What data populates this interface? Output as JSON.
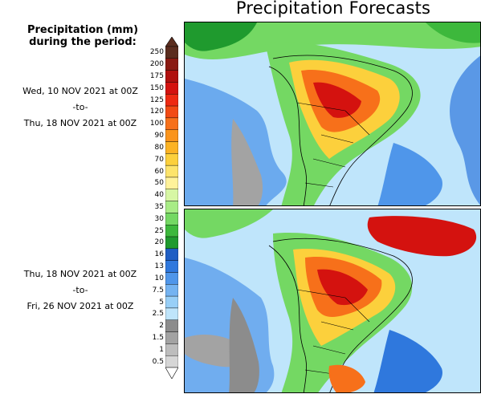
{
  "title": "Precipitation Forecasts",
  "legend": {
    "title_line1": "Precipitation (mm)",
    "title_line2": "during the period:",
    "levels": [
      "250",
      "200",
      "175",
      "150",
      "125",
      "120",
      "100",
      "90",
      "80",
      "70",
      "60",
      "50",
      "40",
      "35",
      "30",
      "25",
      "20",
      "16",
      "13",
      "10",
      "7.5",
      "5",
      "2.5",
      "2",
      "1.5",
      "1",
      "0.5"
    ],
    "colors": [
      "#5b2d1f",
      "#8a1a12",
      "#b0100e",
      "#d4120f",
      "#ee2a12",
      "#f24a14",
      "#f7701a",
      "#fa941c",
      "#fcb324",
      "#fcd03c",
      "#fde46b",
      "#fff29a",
      "#d7f7a4",
      "#a8ec86",
      "#74d863",
      "#3db83c",
      "#1f9a2e",
      "#1f5ec4",
      "#2f78dd",
      "#4f96ea",
      "#74b3f1",
      "#98cff7",
      "#bfe5fb",
      "#8c8c8c",
      "#a3a3a3",
      "#bdbdbd",
      "#d6d6d6"
    ]
  },
  "periods": [
    {
      "start": "Wed, 10 NOV 2021 at 00Z",
      "sep": "-to-",
      "end": "Thu, 18 NOV 2021 at 00Z"
    },
    {
      "start": "Thu, 18 NOV 2021 at 00Z",
      "sep": "-to-",
      "end": "Fri, 26 NOV 2021 at 00Z"
    }
  ],
  "maps": [
    {
      "region": "South America",
      "ocean_color": "#bfe5fb"
    },
    {
      "region": "South America",
      "ocean_color": "#bfe5fb"
    }
  ]
}
